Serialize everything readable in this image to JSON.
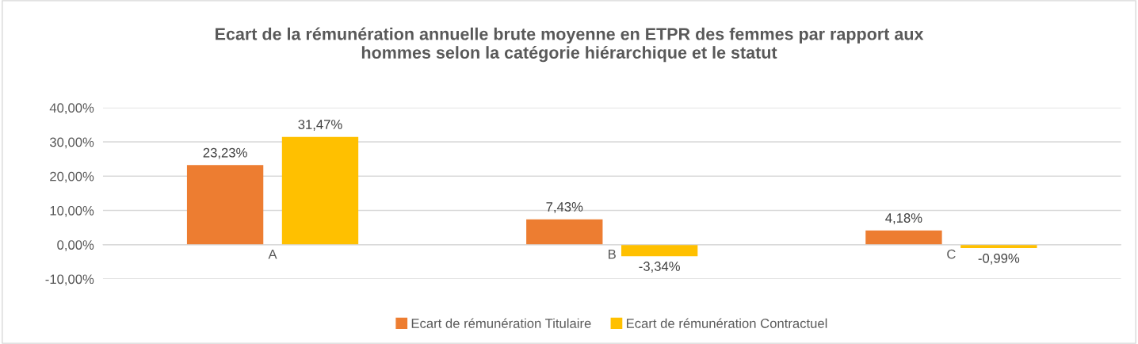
{
  "chart_data": {
    "type": "bar",
    "title": "Ecart de la rémunération annuelle brute moyenne en ETPR des femmes par rapport aux\nhommes selon la catégorie hiérarchique et le statut",
    "categories": [
      "A",
      "B",
      "C"
    ],
    "series": [
      {
        "name": "Ecart de rémunération Titulaire",
        "color": "#ed7d31",
        "values": [
          23.23,
          7.43,
          4.18
        ],
        "value_labels": [
          "23,23%",
          "7,43%",
          "4,18%"
        ]
      },
      {
        "name": "Ecart de rémunération Contractuel",
        "color": "#ffc000",
        "values": [
          31.47,
          -3.34,
          -0.99
        ],
        "value_labels": [
          "31,47%",
          "-3,34%",
          "-0,99%"
        ]
      }
    ],
    "ylim": [
      -10,
      40
    ],
    "yticks": [
      {
        "value": -10,
        "label": "-10,00%"
      },
      {
        "value": 0,
        "label": "0,00%"
      },
      {
        "value": 10,
        "label": "10,00%"
      },
      {
        "value": 20,
        "label": "20,00%"
      },
      {
        "value": 30,
        "label": "30,00%"
      },
      {
        "value": 40,
        "label": "40,00%"
      }
    ],
    "grid": "y",
    "legend": "bottom"
  }
}
